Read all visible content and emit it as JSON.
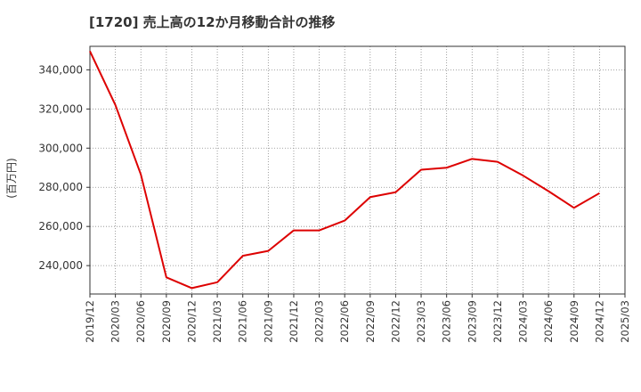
{
  "chart_data": {
    "type": "line",
    "title": "[1720]  売上高の12か月移動合計の推移",
    "xlabel": "",
    "ylabel": "(百万円)",
    "ylim": [
      225500,
      352000
    ],
    "yticks": [
      240000,
      260000,
      280000,
      300000,
      320000,
      340000
    ],
    "ytick_labels": [
      "240,000",
      "260,000",
      "280,000",
      "300,000",
      "320,000",
      "340,000"
    ],
    "xticks": [
      "2019/12",
      "2020/03",
      "2020/06",
      "2020/09",
      "2020/12",
      "2021/03",
      "2021/06",
      "2021/09",
      "2021/12",
      "2022/03",
      "2022/06",
      "2022/09",
      "2022/12",
      "2023/03",
      "2023/06",
      "2023/09",
      "2023/12",
      "2024/03",
      "2024/06",
      "2024/09",
      "2024/12",
      "2025/03"
    ],
    "grid": true,
    "series": [
      {
        "name": "売上高",
        "color": "#dd0000",
        "x": [
          "2019/12",
          "2020/03",
          "2020/06",
          "2020/09",
          "2020/12",
          "2021/03",
          "2021/06",
          "2021/09",
          "2021/12",
          "2022/03",
          "2022/06",
          "2022/09",
          "2022/12",
          "2023/03",
          "2023/06",
          "2023/09",
          "2023/12",
          "2024/03",
          "2024/06",
          "2024/09",
          "2024/12"
        ],
        "values": [
          349500,
          322000,
          286500,
          234000,
          228500,
          231500,
          245000,
          247500,
          258000,
          258000,
          263000,
          275000,
          277500,
          289000,
          290000,
          294500,
          293000,
          286000,
          278000,
          269500,
          277000
        ]
      }
    ]
  }
}
